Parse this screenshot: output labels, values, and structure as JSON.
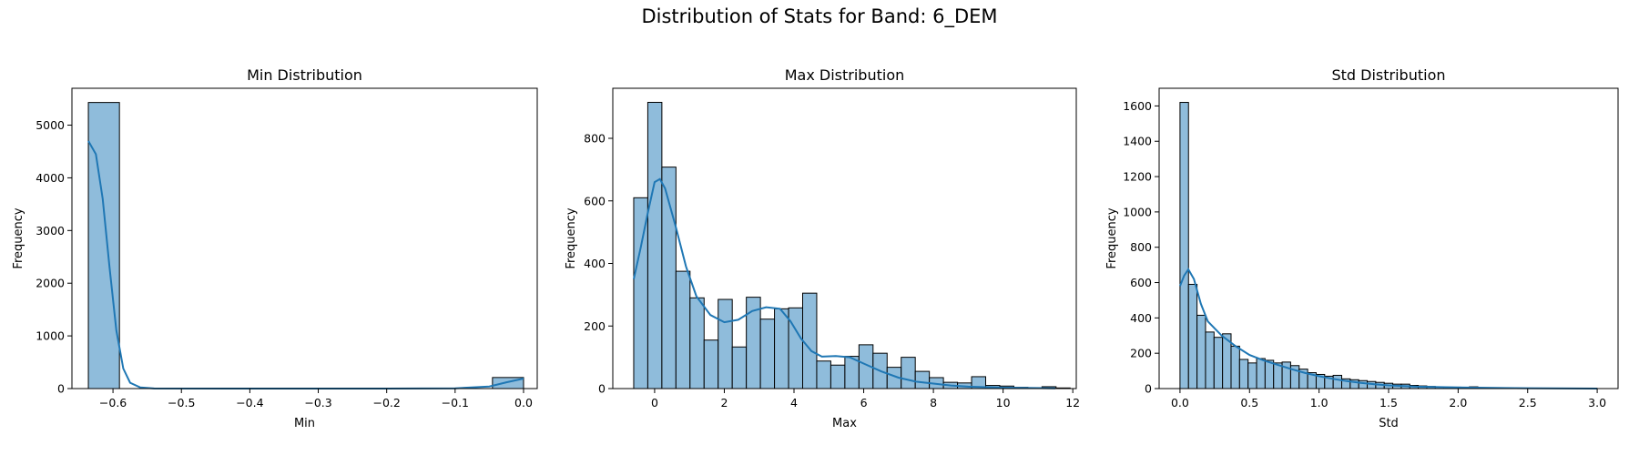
{
  "figure_title": "Distribution of Stats for Band: 6_DEM",
  "colors": {
    "bar_fill": "#8fbcdb",
    "bar_edge": "#000000",
    "kde": "#1f77b4"
  },
  "chart_data": [
    {
      "type": "bar",
      "title": "Min Distribution",
      "xlabel": "Min",
      "ylabel": "Frequency",
      "xlim": [
        -0.66,
        0.02
      ],
      "ylim": [
        0,
        5700
      ],
      "xticks": [
        -0.6,
        -0.5,
        -0.4,
        -0.3,
        -0.2,
        -0.1,
        0.0
      ],
      "xtick_labels": [
        "−0.6",
        "−0.5",
        "−0.4",
        "−0.3",
        "−0.2",
        "−0.1",
        "0.0"
      ],
      "yticks": [
        0,
        1000,
        2000,
        3000,
        4000,
        5000
      ],
      "ytick_labels": [
        "0",
        "1000",
        "2000",
        "3000",
        "4000",
        "5000"
      ],
      "bin_start": -0.636,
      "bin_width": 0.04543,
      "values": [
        5430,
        0,
        0,
        0,
        0,
        0,
        0,
        0,
        0,
        0,
        0,
        0,
        0,
        210
      ],
      "kde": [
        [
          -0.636,
          4700
        ],
        [
          -0.625,
          4450
        ],
        [
          -0.615,
          3600
        ],
        [
          -0.605,
          2300
        ],
        [
          -0.595,
          1100
        ],
        [
          -0.585,
          380
        ],
        [
          -0.575,
          110
        ],
        [
          -0.56,
          20
        ],
        [
          -0.54,
          2
        ],
        [
          -0.4,
          0
        ],
        [
          -0.2,
          0
        ],
        [
          -0.1,
          5
        ],
        [
          -0.05,
          40
        ],
        [
          -0.025,
          120
        ],
        [
          0.0,
          190
        ]
      ]
    },
    {
      "type": "bar",
      "title": "Max Distribution",
      "xlabel": "Max",
      "ylabel": "Frequency",
      "xlim": [
        -1.2,
        12.1
      ],
      "ylim": [
        0,
        960
      ],
      "xticks": [
        0,
        2,
        4,
        6,
        8,
        10,
        12
      ],
      "xtick_labels": [
        "0",
        "2",
        "4",
        "6",
        "8",
        "10",
        "12"
      ],
      "yticks": [
        0,
        200,
        400,
        600,
        800
      ],
      "ytick_labels": [
        "0",
        "200",
        "400",
        "600",
        "800"
      ],
      "bin_start": -0.6,
      "bin_width": 0.404,
      "values": [
        610,
        915,
        708,
        375,
        290,
        155,
        285,
        133,
        292,
        222,
        255,
        258,
        305,
        88,
        75,
        103,
        140,
        113,
        68,
        100,
        55,
        35,
        20,
        18,
        38,
        10,
        8,
        4,
        3,
        6,
        2
      ],
      "kde": [
        [
          -0.6,
          350
        ],
        [
          -0.4,
          450
        ],
        [
          -0.2,
          560
        ],
        [
          0.0,
          660
        ],
        [
          0.15,
          670
        ],
        [
          0.3,
          640
        ],
        [
          0.6,
          520
        ],
        [
          0.9,
          390
        ],
        [
          1.2,
          295
        ],
        [
          1.6,
          235
        ],
        [
          2.0,
          212
        ],
        [
          2.4,
          220
        ],
        [
          2.8,
          248
        ],
        [
          3.2,
          260
        ],
        [
          3.6,
          255
        ],
        [
          3.9,
          215
        ],
        [
          4.2,
          160
        ],
        [
          4.5,
          120
        ],
        [
          4.8,
          102
        ],
        [
          5.2,
          104
        ],
        [
          5.6,
          100
        ],
        [
          6.0,
          80
        ],
        [
          6.5,
          55
        ],
        [
          7.0,
          35
        ],
        [
          7.5,
          22
        ],
        [
          8.0,
          16
        ],
        [
          8.5,
          10
        ],
        [
          9.0,
          6
        ],
        [
          10.0,
          3
        ],
        [
          11.5,
          1
        ]
      ]
    },
    {
      "type": "bar",
      "title": "Std Distribution",
      "xlabel": "Std",
      "ylabel": "Frequency",
      "xlim": [
        -0.15,
        3.15
      ],
      "ylim": [
        0,
        1700
      ],
      "xticks": [
        0.0,
        0.5,
        1.0,
        1.5,
        2.0,
        2.5,
        3.0
      ],
      "xtick_labels": [
        "0.0",
        "0.5",
        "1.0",
        "1.5",
        "2.0",
        "2.5",
        "3.0"
      ],
      "yticks": [
        0,
        200,
        400,
        600,
        800,
        1000,
        1200,
        1400,
        1600
      ],
      "ytick_labels": [
        "0",
        "200",
        "400",
        "600",
        "800",
        "1000",
        "1200",
        "1400",
        "1600"
      ],
      "bin_start": 0.0,
      "bin_width": 0.0612,
      "values": [
        1620,
        590,
        415,
        320,
        290,
        310,
        240,
        165,
        145,
        170,
        160,
        145,
        150,
        130,
        110,
        90,
        80,
        70,
        75,
        55,
        50,
        45,
        40,
        35,
        30,
        25,
        25,
        18,
        15,
        12,
        10,
        8,
        8,
        6,
        10,
        5,
        4,
        3,
        2,
        2,
        2,
        1,
        1,
        1,
        1,
        1,
        1,
        1,
        1
      ],
      "kde": [
        [
          0.0,
          580
        ],
        [
          0.03,
          640
        ],
        [
          0.06,
          675
        ],
        [
          0.1,
          620
        ],
        [
          0.15,
          480
        ],
        [
          0.2,
          380
        ],
        [
          0.3,
          300
        ],
        [
          0.4,
          240
        ],
        [
          0.5,
          190
        ],
        [
          0.6,
          160
        ],
        [
          0.7,
          135
        ],
        [
          0.8,
          110
        ],
        [
          0.9,
          88
        ],
        [
          1.0,
          70
        ],
        [
          1.1,
          55
        ],
        [
          1.2,
          42
        ],
        [
          1.3,
          32
        ],
        [
          1.4,
          24
        ],
        [
          1.5,
          18
        ],
        [
          1.7,
          11
        ],
        [
          2.0,
          6
        ],
        [
          2.5,
          2
        ],
        [
          3.0,
          0
        ]
      ]
    }
  ]
}
